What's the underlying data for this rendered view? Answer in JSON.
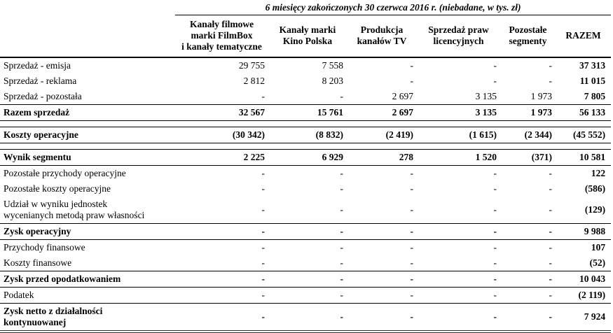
{
  "table": {
    "title": "6 miesięcy zakończonych 30 czerwca 2016 r. (niebadane, w tys. zł)",
    "columns": [
      "Kanały filmowe\nmarki FilmBox\ni kanały tematyczne",
      "Kanały marki\nKino Polska",
      "Produkcja\nkanałów TV",
      "Sprzedaż praw\nlicencyjnych",
      "Pozostałe\nsegmenty",
      "RAZEM"
    ],
    "rows": [
      {
        "label": "Sprzedaż - emisja",
        "bold": false,
        "border": "none",
        "values": [
          "29 755",
          "7 558",
          "-",
          "-",
          "-",
          "37 313"
        ]
      },
      {
        "label": "Sprzedaż - reklama",
        "bold": false,
        "border": "none",
        "values": [
          "2 812",
          "8 203",
          "-",
          "-",
          "-",
          "11 015"
        ]
      },
      {
        "label": "Sprzedaż - pozostała",
        "bold": false,
        "border": "bottom",
        "values": [
          "-",
          "-",
          "2 697",
          "3 135",
          "1 973",
          "7 805"
        ]
      },
      {
        "label": "Razem sprzedaż",
        "bold": true,
        "border": "bottom",
        "values": [
          "32 567",
          "15 761",
          "2 697",
          "3 135",
          "1 973",
          "56 133"
        ]
      },
      {
        "spacer": true
      },
      {
        "label": "Koszty operacyjne",
        "bold": true,
        "border": "bottom",
        "values": [
          "(30 342)",
          "(8 832)",
          "(2 419)",
          "(1 615)",
          "(2 344)",
          "(45 552)"
        ]
      },
      {
        "spacer": true
      },
      {
        "label": "Wynik segmentu",
        "bold": true,
        "border": "bottom",
        "values": [
          "2 225",
          "6 929",
          "278",
          "1 520",
          "(371)",
          "10 581"
        ]
      },
      {
        "label": "Pozostałe przychody operacyjne",
        "bold": false,
        "border": "none",
        "values": [
          "-",
          "-",
          "-",
          "-",
          "-",
          "122"
        ]
      },
      {
        "label": "Pozostałe koszty operacyjne",
        "bold": false,
        "border": "none",
        "values": [
          "-",
          "-",
          "-",
          "-",
          "-",
          "(586)"
        ]
      },
      {
        "label": "Udział w wyniku jednostek\nwycenianych metodą praw własności",
        "bold": false,
        "border": "bottom",
        "values": [
          "-",
          "-",
          "-",
          "-",
          "-",
          "(129)"
        ]
      },
      {
        "label": "Zysk operacyjny",
        "bold": true,
        "border": "bottom",
        "values": [
          "-",
          "-",
          "-",
          "-",
          "-",
          "9 988"
        ]
      },
      {
        "label": "Przychody finansowe",
        "bold": false,
        "border": "none",
        "values": [
          "-",
          "-",
          "-",
          "-",
          "-",
          "107"
        ]
      },
      {
        "label": "Koszty finansowe",
        "bold": false,
        "border": "bottom",
        "values": [
          "-",
          "-",
          "-",
          "-",
          "-",
          "(52)"
        ]
      },
      {
        "label": "Zysk przed opodatkowaniem",
        "bold": true,
        "border": "bottom",
        "values": [
          "-",
          "-",
          "-",
          "-",
          "-",
          "10 043"
        ]
      },
      {
        "label": "Podatek",
        "bold": false,
        "border": "bottom",
        "values": [
          "-",
          "-",
          "-",
          "-",
          "-",
          "(2 119)"
        ]
      },
      {
        "label": "Zysk netto z działalności\nkontynuowanej",
        "bold": true,
        "border": "double",
        "values": [
          "-",
          "-",
          "-",
          "-",
          "-",
          "7 924"
        ]
      }
    ]
  }
}
